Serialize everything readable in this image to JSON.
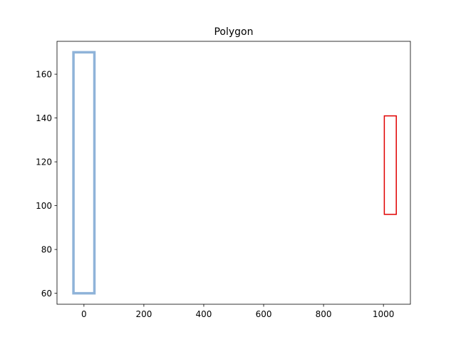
{
  "chart_data": {
    "type": "polygon",
    "title": "Polygon",
    "xlabel": "",
    "ylabel": "",
    "xlim": [
      -90,
      1090
    ],
    "ylim": [
      55,
      175
    ],
    "grid": false,
    "x_ticks": [
      0,
      200,
      400,
      600,
      800,
      1000
    ],
    "y_ticks": [
      60,
      80,
      100,
      120,
      140,
      160
    ],
    "series": [
      {
        "color": "#8fb3d9",
        "vertices": [
          [
            -35,
            60
          ],
          [
            35,
            60
          ],
          [
            35,
            170
          ],
          [
            -35,
            170
          ]
        ]
      },
      {
        "color": "#e00000",
        "vertices": [
          [
            1003,
            96
          ],
          [
            1043,
            96
          ],
          [
            1043,
            141
          ],
          [
            1003,
            141
          ]
        ]
      }
    ]
  }
}
